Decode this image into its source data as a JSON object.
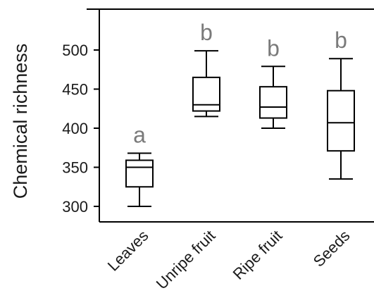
{
  "chart_data": {
    "type": "box",
    "ylabel": "Chemical richness",
    "yticks": [
      300,
      350,
      400,
      450,
      500
    ],
    "ylim": [
      290,
      542
    ],
    "categories": [
      "Leaves",
      "Unripe fruit",
      "Ripe fruit",
      "Seeds"
    ],
    "boxes": [
      {
        "category": "Leaves",
        "min": 300,
        "q1": 325,
        "median": 350,
        "q3": 359,
        "max": 368,
        "letter": "a"
      },
      {
        "category": "Unripe fruit",
        "min": 415,
        "q1": 422,
        "median": 430,
        "q3": 465,
        "max": 499,
        "letter": "b"
      },
      {
        "category": "Ripe fruit",
        "min": 400,
        "q1": 413,
        "median": 427,
        "q3": 453,
        "max": 479,
        "letter": "b"
      },
      {
        "category": "Seeds",
        "min": 335,
        "q1": 371,
        "median": 407,
        "q3": 448,
        "max": 489,
        "letter": "b"
      }
    ]
  }
}
